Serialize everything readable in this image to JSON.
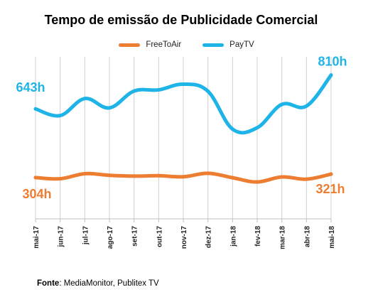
{
  "title": "Tempo de emissão de Publicidade Comercial",
  "source": {
    "label": "Fonte",
    "text": ": MediaMonitor, Publitex TV"
  },
  "colors": {
    "freetoair": "#ED7D31",
    "paytv": "#1FB4E8",
    "grid": "#d0d0d0",
    "axis": "#bfbfbf"
  },
  "chart_data": {
    "type": "line",
    "categories": [
      "mai-17",
      "jun-17",
      "jul-17",
      "ago-17",
      "set-17",
      "out-17",
      "nov-17",
      "dez-17",
      "jan-18",
      "fev-18",
      "mar-18",
      "abr-18",
      "mai-18"
    ],
    "series": [
      {
        "name": "FreeToAir",
        "values": [
          304,
          298,
          323,
          315,
          311,
          313,
          308,
          325,
          303,
          282,
          307,
          296,
          321
        ]
      },
      {
        "name": "PayTV",
        "values": [
          643,
          610,
          694,
          648,
          731,
          737,
          765,
          730,
          543,
          550,
          665,
          657,
          810
        ]
      }
    ],
    "annotations": [
      {
        "series": "PayTV",
        "index": 0,
        "text": "643h"
      },
      {
        "series": "PayTV",
        "index": 12,
        "text": "810h"
      },
      {
        "series": "FreeToAir",
        "index": 0,
        "text": "304h"
      },
      {
        "series": "FreeToAir",
        "index": 12,
        "text": "321h"
      }
    ],
    "ylim": [
      100,
      900
    ],
    "grid": "vertical",
    "legend_position": "top"
  }
}
